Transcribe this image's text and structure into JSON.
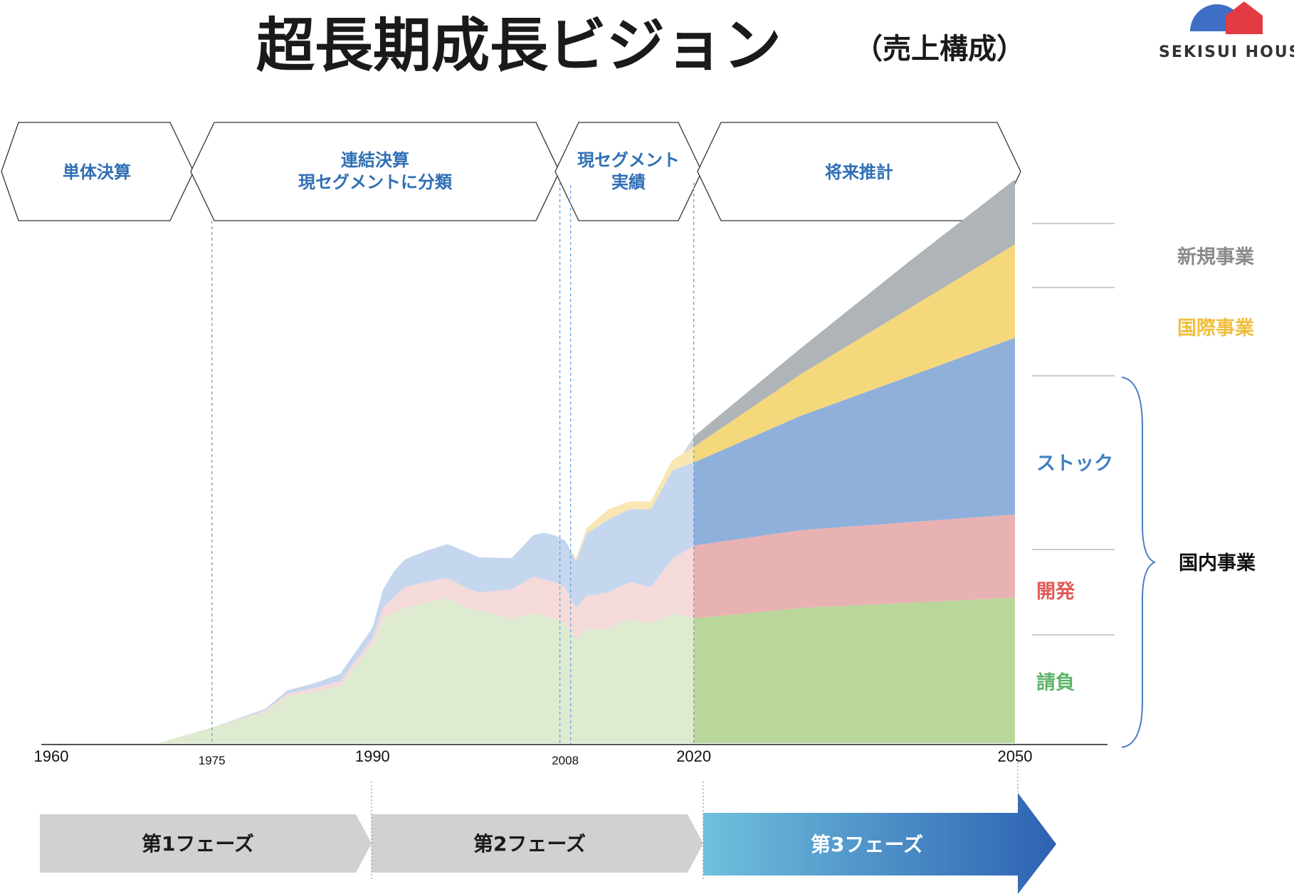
{
  "title": "超長期成長ビジョン",
  "subtitle": "（売上構成）",
  "logo": {
    "text": "SEKISUI HOUSE",
    "colors": {
      "blue": "#3f6fc4",
      "red": "#e23b43"
    }
  },
  "eras": [
    {
      "lines": [
        "単体決算"
      ]
    },
    {
      "lines": [
        "連結決算",
        "現セグメントに分類"
      ]
    },
    {
      "lines": [
        "現セグメント",
        "実績"
      ]
    },
    {
      "lines": [
        "将来推計"
      ]
    }
  ],
  "phases": [
    {
      "label": "第1フェーズ"
    },
    {
      "label": "第2フェーズ"
    },
    {
      "label": "第3フェーズ"
    }
  ],
  "chart_data": {
    "type": "area",
    "stacked": true,
    "x_ticks": [
      {
        "value": 1960,
        "label": "1960",
        "size": "large"
      },
      {
        "value": 1975,
        "label": "1975",
        "size": "small"
      },
      {
        "value": 1990,
        "label": "1990",
        "size": "large"
      },
      {
        "value": 2008,
        "label": "2008",
        "size": "small"
      },
      {
        "value": 2020,
        "label": "2020",
        "size": "large"
      },
      {
        "value": 2050,
        "label": "2050",
        "size": "large"
      }
    ],
    "xlim": [
      1960,
      2055
    ],
    "ylim": [
      0,
      100
    ],
    "projection_start": 2020,
    "series": [
      {
        "name": "請負",
        "color": "#b9d79a",
        "past_color": "#deebd0",
        "points": [
          [
            1960,
            0
          ],
          [
            1965,
            0
          ],
          [
            1970,
            0
          ],
          [
            1975,
            3
          ],
          [
            1980,
            6
          ],
          [
            1982,
            9
          ],
          [
            1985,
            10
          ],
          [
            1987,
            11
          ],
          [
            1990,
            19
          ],
          [
            1991,
            24
          ],
          [
            1993,
            26
          ],
          [
            1995,
            27
          ],
          [
            1997,
            28
          ],
          [
            1999,
            26
          ],
          [
            2001,
            25
          ],
          [
            2003,
            24
          ],
          [
            2005,
            25
          ],
          [
            2007,
            24
          ],
          [
            2008,
            23
          ],
          [
            2009,
            20
          ],
          [
            2010,
            22
          ],
          [
            2012,
            22
          ],
          [
            2014,
            24
          ],
          [
            2016,
            23
          ],
          [
            2018,
            25
          ],
          [
            2020,
            24
          ],
          [
            2025,
            25
          ],
          [
            2030,
            26
          ],
          [
            2040,
            27
          ],
          [
            2050,
            28
          ]
        ]
      },
      {
        "name": "開発",
        "color": "#e8b2b2",
        "past_color": "#f5dada",
        "points": [
          [
            1960,
            0
          ],
          [
            1975,
            0
          ],
          [
            1980,
            0.3
          ],
          [
            1985,
            0.8
          ],
          [
            1990,
            1.2
          ],
          [
            1993,
            4
          ],
          [
            1995,
            4
          ],
          [
            2000,
            3.5
          ],
          [
            2005,
            7
          ],
          [
            2008,
            7
          ],
          [
            2009,
            6
          ],
          [
            2012,
            7
          ],
          [
            2016,
            7
          ],
          [
            2020,
            14
          ],
          [
            2030,
            15
          ],
          [
            2040,
            15.5
          ],
          [
            2050,
            16
          ]
        ]
      },
      {
        "name": "ストック",
        "color": "#8fb0db",
        "past_color": "#c5d7ee",
        "points": [
          [
            1960,
            0
          ],
          [
            1975,
            0
          ],
          [
            1980,
            0.3
          ],
          [
            1985,
            1
          ],
          [
            1990,
            2
          ],
          [
            1992,
            5
          ],
          [
            1995,
            6
          ],
          [
            1999,
            7
          ],
          [
            2003,
            6
          ],
          [
            2006,
            9
          ],
          [
            2008,
            9
          ],
          [
            2009,
            9
          ],
          [
            2010,
            12
          ],
          [
            2012,
            14
          ],
          [
            2014,
            14
          ],
          [
            2016,
            15
          ],
          [
            2018,
            17
          ],
          [
            2020,
            16
          ],
          [
            2030,
            22
          ],
          [
            2040,
            28
          ],
          [
            2050,
            34
          ]
        ]
      },
      {
        "name": "国際事業",
        "color": "#f5d77c",
        "past_color": "#f8e6b3",
        "points": [
          [
            1960,
            0
          ],
          [
            2008,
            0
          ],
          [
            2010,
            1
          ],
          [
            2012,
            2
          ],
          [
            2014,
            1.5
          ],
          [
            2016,
            1.5
          ],
          [
            2018,
            2
          ],
          [
            2020,
            3
          ],
          [
            2030,
            8
          ],
          [
            2040,
            13
          ],
          [
            2050,
            18
          ]
        ]
      },
      {
        "name": "新規事業",
        "color": "#aeb4b8",
        "past_color": "#d6d9db",
        "points": [
          [
            1960,
            0
          ],
          [
            2019,
            0
          ],
          [
            2020,
            2
          ],
          [
            2030,
            5
          ],
          [
            2040,
            9
          ],
          [
            2050,
            12.5
          ]
        ]
      }
    ],
    "legend": {
      "outside": [
        {
          "label": "新規事業",
          "color": "#8a8a8a"
        },
        {
          "label": "国際事業",
          "color": "#f0be3c"
        }
      ],
      "domestic_group": {
        "label": "国内事業",
        "items": [
          {
            "label": "ストック",
            "color": "#3f7fc4"
          },
          {
            "label": "開発",
            "color": "#e05a55"
          },
          {
            "label": "請負",
            "color": "#5cb269"
          }
        ]
      }
    }
  }
}
